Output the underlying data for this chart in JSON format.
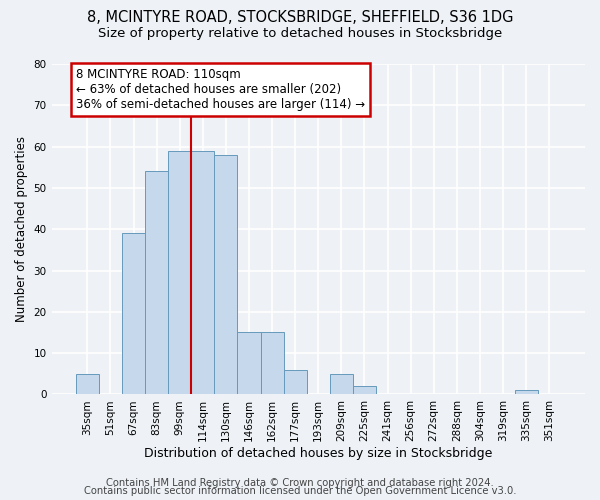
{
  "title1": "8, MCINTYRE ROAD, STOCKSBRIDGE, SHEFFIELD, S36 1DG",
  "title2": "Size of property relative to detached houses in Stocksbridge",
  "xlabel": "Distribution of detached houses by size in Stocksbridge",
  "ylabel": "Number of detached properties",
  "footer1": "Contains HM Land Registry data © Crown copyright and database right 2024.",
  "footer2": "Contains public sector information licensed under the Open Government Licence v3.0.",
  "bar_labels": [
    "35sqm",
    "51sqm",
    "67sqm",
    "83sqm",
    "99sqm",
    "114sqm",
    "130sqm",
    "146sqm",
    "162sqm",
    "177sqm",
    "193sqm",
    "209sqm",
    "225sqm",
    "241sqm",
    "256sqm",
    "272sqm",
    "288sqm",
    "304sqm",
    "319sqm",
    "335sqm",
    "351sqm"
  ],
  "bar_values": [
    5,
    0,
    39,
    54,
    59,
    59,
    58,
    15,
    15,
    6,
    0,
    5,
    2,
    0,
    0,
    0,
    0,
    0,
    0,
    1,
    0
  ],
  "bar_color": "#c6d9ec",
  "bar_edge_color": "#6699bb",
  "property_line_label": "8 MCINTYRE ROAD: 110sqm",
  "annotation_line1": "← 63% of detached houses are smaller (202)",
  "annotation_line2": "36% of semi-detached houses are larger (114) →",
  "annotation_box_color": "#ffffff",
  "annotation_box_edge_color": "#cc0000",
  "vline_color": "#cc0000",
  "vline_x_index": 4.5,
  "ylim": [
    0,
    80
  ],
  "yticks": [
    0,
    10,
    20,
    30,
    40,
    50,
    60,
    70,
    80
  ],
  "background_color": "#eef2f7",
  "grid_color": "#ffffff",
  "title1_fontsize": 10.5,
  "title2_fontsize": 9.5,
  "xlabel_fontsize": 9,
  "ylabel_fontsize": 8.5,
  "footer_fontsize": 7.2,
  "tick_fontsize": 7.5,
  "annot_fontsize": 8.5
}
